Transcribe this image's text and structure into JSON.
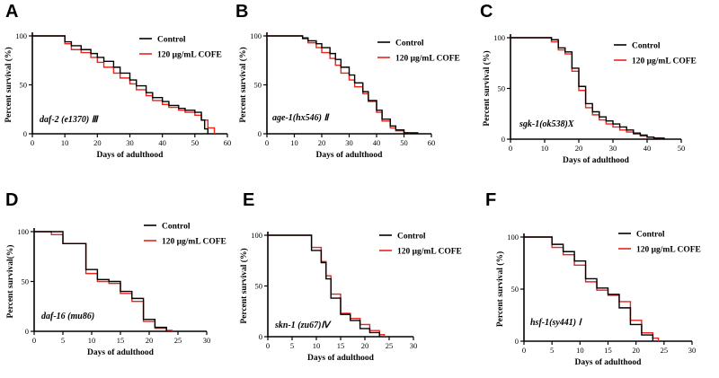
{
  "colors": {
    "control": "#000000",
    "cofe": "#e8241c",
    "axis": "#000000"
  },
  "chart_data": [
    {
      "panel_label": "A",
      "type": "line",
      "step": true,
      "annotation": "daf-2 (e1370) Ⅲ",
      "xlabel": "Days of adulthood",
      "ylabel": "Percent survival (%)",
      "xlim": [
        0,
        60
      ],
      "ylim": [
        0,
        100
      ],
      "xticks": [
        0,
        10,
        20,
        30,
        40,
        50,
        60
      ],
      "yticks": [
        0,
        50,
        100
      ],
      "legend": [
        "Control",
        "120 μg/mL COFE"
      ],
      "series": [
        {
          "name": "Control",
          "x": [
            0,
            8,
            10,
            12,
            15,
            18,
            20,
            22,
            25,
            27,
            30,
            32,
            35,
            37,
            40,
            42,
            45,
            47,
            50,
            52,
            53,
            54
          ],
          "y": [
            100,
            100,
            94,
            90,
            86,
            82,
            78,
            74,
            68,
            62,
            55,
            49,
            42,
            37,
            33,
            29,
            26,
            24,
            22,
            14,
            5,
            0
          ]
        },
        {
          "name": "120 μg/mL COFE",
          "x": [
            0,
            8,
            10,
            12,
            15,
            18,
            20,
            22,
            25,
            27,
            30,
            32,
            35,
            37,
            40,
            42,
            45,
            47,
            50,
            52,
            54,
            56
          ],
          "y": [
            100,
            100,
            92,
            86,
            83,
            78,
            73,
            68,
            62,
            57,
            51,
            45,
            39,
            34,
            30,
            27,
            24,
            22,
            19,
            14,
            6,
            0
          ]
        }
      ]
    },
    {
      "panel_label": "B",
      "type": "line",
      "step": true,
      "annotation": "age-1(hx546) Ⅱ",
      "xlabel": "Days of adulthood",
      "ylabel": "Percent survival (%)",
      "xlim": [
        0,
        60
      ],
      "ylim": [
        0,
        100
      ],
      "xticks": [
        0,
        10,
        20,
        30,
        40,
        50,
        60
      ],
      "yticks": [
        0,
        50,
        100
      ],
      "legend": [
        "Control",
        "120 μg/mL COFE"
      ],
      "series": [
        {
          "name": "Control",
          "x": [
            0,
            10,
            13,
            15,
            18,
            20,
            23,
            25,
            27,
            30,
            32,
            35,
            37,
            40,
            42,
            45,
            47,
            50,
            55
          ],
          "y": [
            100,
            100,
            98,
            95,
            92,
            88,
            82,
            76,
            68,
            60,
            52,
            43,
            34,
            24,
            15,
            8,
            4,
            1,
            0
          ]
        },
        {
          "name": "120 μg/mL COFE",
          "x": [
            0,
            10,
            13,
            15,
            18,
            20,
            23,
            25,
            27,
            30,
            32,
            35,
            37,
            40,
            42,
            45,
            47,
            50,
            52
          ],
          "y": [
            100,
            100,
            97,
            93,
            88,
            83,
            77,
            70,
            62,
            55,
            48,
            41,
            33,
            22,
            13,
            6,
            3,
            1,
            0
          ]
        }
      ]
    },
    {
      "panel_label": "C",
      "type": "line",
      "step": true,
      "annotation": "sgk-1(ok538)X",
      "xlabel": "Days of adulthood",
      "ylabel": "Percent survival (%)",
      "xlim": [
        0,
        50
      ],
      "ylim": [
        0,
        100
      ],
      "xticks": [
        0,
        10,
        20,
        30,
        40,
        50
      ],
      "yticks": [
        0,
        50,
        100
      ],
      "legend": [
        "Control",
        "120 μg/mL COFE"
      ],
      "series": [
        {
          "name": "Control",
          "x": [
            0,
            10,
            12,
            14,
            16,
            18,
            20,
            22,
            24,
            26,
            28,
            30,
            32,
            34,
            36,
            38,
            40,
            42,
            45
          ],
          "y": [
            100,
            100,
            98,
            90,
            86,
            70,
            52,
            35,
            27,
            22,
            18,
            15,
            12,
            9,
            6,
            4,
            2,
            1,
            0
          ]
        },
        {
          "name": "120 μg/mL COFE",
          "x": [
            0,
            10,
            12,
            14,
            16,
            18,
            20,
            22,
            24,
            26,
            28,
            30,
            32,
            34,
            36,
            38,
            40,
            42,
            44
          ],
          "y": [
            100,
            100,
            96,
            88,
            84,
            67,
            48,
            31,
            24,
            19,
            15,
            12,
            9,
            7,
            5,
            3,
            2,
            1,
            0
          ]
        }
      ]
    },
    {
      "panel_label": "D",
      "type": "line",
      "step": true,
      "annotation": "daf-16 (mu86)",
      "xlabel": "Days of adulthood",
      "ylabel": "Percent survival(%)",
      "xlim": [
        0,
        30
      ],
      "ylim": [
        0,
        100
      ],
      "xticks": [
        0,
        5,
        10,
        15,
        20,
        25,
        30
      ],
      "yticks": [
        0,
        50,
        100
      ],
      "legend": [
        "Control",
        "120 μg/mL COFE"
      ],
      "series": [
        {
          "name": "Control",
          "x": [
            0,
            3,
            5,
            9,
            11,
            13,
            15,
            17,
            19,
            21,
            23
          ],
          "y": [
            100,
            100,
            88,
            62,
            52,
            50,
            40,
            33,
            12,
            4,
            0
          ]
        },
        {
          "name": "120 μg/mL COFE",
          "x": [
            0,
            3,
            5,
            9,
            11,
            13,
            15,
            17,
            19,
            21,
            23,
            24
          ],
          "y": [
            100,
            97,
            88,
            58,
            50,
            48,
            38,
            30,
            10,
            3,
            1,
            0
          ]
        }
      ]
    },
    {
      "panel_label": "E",
      "type": "line",
      "step": true,
      "annotation": "skn-1 (zu67)Ⅳ",
      "xlabel": "Days of adulthood",
      "ylabel": "Percent survival (%)",
      "xlim": [
        0,
        30
      ],
      "ylim": [
        0,
        100
      ],
      "xticks": [
        0,
        5,
        10,
        15,
        20,
        25,
        30
      ],
      "yticks": [
        0,
        50,
        100
      ],
      "legend": [
        "Control",
        "120 μg/mL COFE"
      ],
      "series": [
        {
          "name": "Control",
          "x": [
            0,
            7,
            9,
            11,
            12,
            13,
            15,
            17,
            19,
            21,
            23
          ],
          "y": [
            100,
            100,
            85,
            73,
            57,
            38,
            22,
            16,
            8,
            4,
            0
          ]
        },
        {
          "name": "120 μg/mL COFE",
          "x": [
            0,
            7,
            9,
            11,
            12,
            13,
            15,
            17,
            19,
            21,
            23,
            24
          ],
          "y": [
            100,
            100,
            88,
            74,
            60,
            42,
            23,
            18,
            12,
            6,
            2,
            0
          ]
        }
      ]
    },
    {
      "panel_label": "F",
      "type": "line",
      "step": true,
      "annotation": "hsf-1(sy441) Ⅰ",
      "xlabel": "Days of adulthood",
      "ylabel": "Percent survival (%)",
      "xlim": [
        0,
        30
      ],
      "ylim": [
        0,
        100
      ],
      "xticks": [
        0,
        5,
        10,
        15,
        20,
        25,
        30
      ],
      "yticks": [
        0,
        50,
        100
      ],
      "legend": [
        "Control",
        "120 μg/mL COFE"
      ],
      "series": [
        {
          "name": "Control",
          "x": [
            0,
            3,
            5,
            7,
            9,
            11,
            13,
            15,
            17,
            19,
            21,
            23
          ],
          "y": [
            100,
            100,
            93,
            86,
            77,
            60,
            51,
            45,
            32,
            16,
            6,
            0
          ]
        },
        {
          "name": "120 μg/mL COFE",
          "x": [
            0,
            3,
            5,
            7,
            9,
            11,
            13,
            15,
            17,
            19,
            21,
            23,
            24
          ],
          "y": [
            100,
            100,
            90,
            83,
            73,
            57,
            49,
            44,
            38,
            20,
            8,
            3,
            0
          ]
        }
      ]
    }
  ]
}
